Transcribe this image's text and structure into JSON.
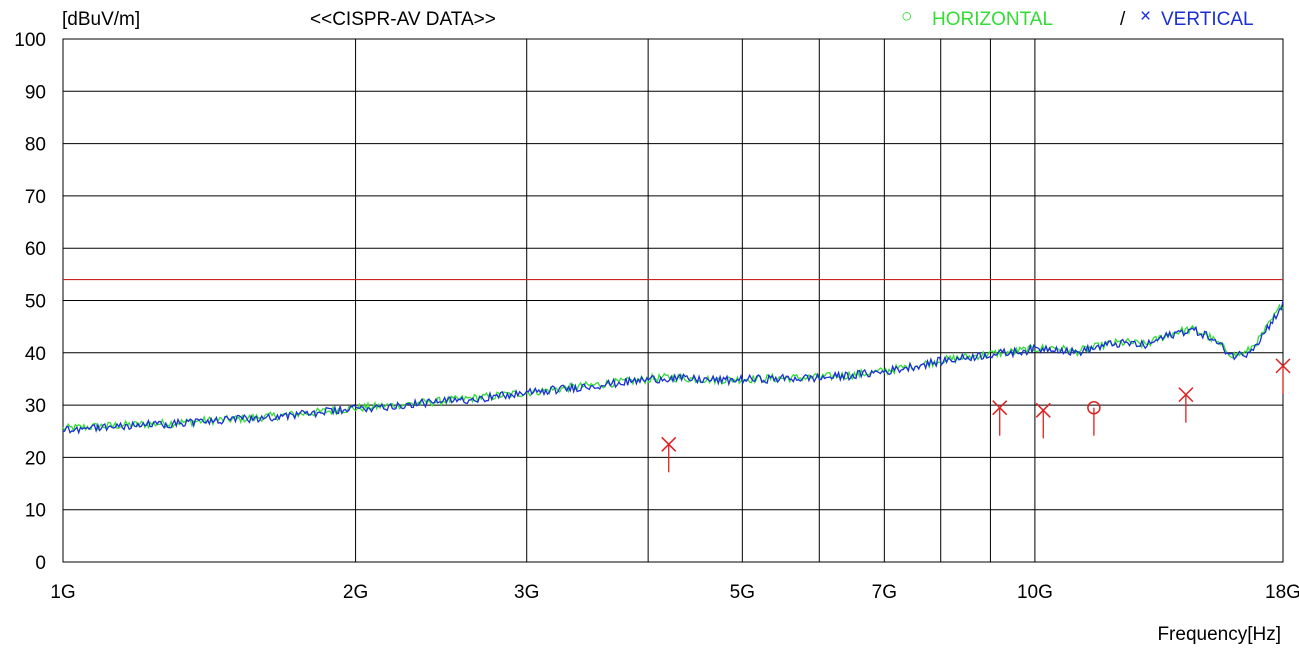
{
  "chart_data": {
    "type": "line",
    "title": "<<CISPR-AV DATA>>",
    "ylabel": "[dBuV/m]",
    "xlabel": "Frequency[Hz]",
    "x_scale": "log",
    "x_unit": "Hz",
    "xlim": [
      1000000000,
      18000000000
    ],
    "ylim": [
      0,
      100
    ],
    "y_ticks": [
      0,
      10,
      20,
      30,
      40,
      50,
      60,
      70,
      80,
      90,
      100
    ],
    "x_ticks": [
      {
        "value": 1000000000,
        "label": "1G"
      },
      {
        "value": 2000000000,
        "label": "2G"
      },
      {
        "value": 3000000000,
        "label": "3G"
      },
      {
        "value": 5000000000,
        "label": "5G"
      },
      {
        "value": 7000000000,
        "label": "7G"
      },
      {
        "value": 10000000000,
        "label": "10G"
      },
      {
        "value": 18000000000,
        "label": "18G"
      }
    ],
    "x_gridlines": [
      1000000000,
      2000000000,
      3000000000,
      4000000000,
      5000000000,
      6000000000,
      7000000000,
      8000000000,
      9000000000,
      10000000000,
      18000000000
    ],
    "grid": true,
    "legend": {
      "position": "top-right",
      "separator": "/",
      "entries": [
        {
          "marker": "○",
          "name": "HORIZONTAL",
          "color": "#33dd33"
        },
        {
          "marker": "×",
          "name": "VERTICAL",
          "color": "#1a2fd6"
        }
      ]
    },
    "limit_line": {
      "value": 54,
      "color": "#cc2222"
    },
    "series": [
      {
        "name": "HORIZONTAL",
        "color": "#33dd33",
        "x": [
          1000000000,
          1100000000,
          1200000000,
          1300000000,
          1400000000,
          1500000000,
          1600000000,
          1700000000,
          1800000000,
          1900000000,
          2000000000,
          2200000000,
          2400000000,
          2600000000,
          2800000000,
          3000000000,
          3200000000,
          3500000000,
          3800000000,
          4000000000,
          4200000000,
          4500000000,
          4800000000,
          5000000000,
          5300000000,
          5600000000,
          6000000000,
          6500000000,
          7000000000,
          7500000000,
          8000000000,
          8500000000,
          9000000000,
          9500000000,
          10000000000,
          10500000000,
          11000000000,
          11500000000,
          12000000000,
          12500000000,
          13000000000,
          13500000000,
          14000000000,
          14500000000,
          15000000000,
          15500000000,
          16000000000,
          16500000000,
          17000000000,
          17500000000,
          18000000000
        ],
        "values": [
          25.5,
          26.0,
          26.3,
          26.6,
          27.0,
          27.3,
          27.7,
          28.1,
          28.5,
          29.0,
          29.4,
          30.0,
          30.6,
          31.2,
          31.8,
          32.4,
          33.0,
          33.8,
          34.5,
          35.0,
          35.3,
          35.0,
          34.8,
          35.0,
          35.1,
          35.2,
          35.3,
          35.8,
          36.5,
          37.5,
          38.5,
          39.2,
          39.8,
          40.2,
          40.8,
          41.0,
          40.2,
          41.0,
          41.8,
          42.0,
          41.5,
          43.0,
          44.0,
          44.5,
          43.5,
          41.5,
          39.5,
          40.0,
          42.5,
          46.0,
          49.5
        ]
      },
      {
        "name": "VERTICAL",
        "color": "#1a2fd6",
        "x": [
          1000000000,
          1100000000,
          1200000000,
          1300000000,
          1400000000,
          1500000000,
          1600000000,
          1700000000,
          1800000000,
          1900000000,
          2000000000,
          2200000000,
          2400000000,
          2600000000,
          2800000000,
          3000000000,
          3200000000,
          3500000000,
          3800000000,
          4000000000,
          4200000000,
          4500000000,
          4800000000,
          5000000000,
          5300000000,
          5600000000,
          6000000000,
          6500000000,
          7000000000,
          7500000000,
          8000000000,
          8500000000,
          9000000000,
          9500000000,
          10000000000,
          10500000000,
          11000000000,
          11500000000,
          12000000000,
          12500000000,
          13000000000,
          13500000000,
          14000000000,
          14500000000,
          15000000000,
          15500000000,
          16000000000,
          16500000000,
          17000000000,
          17500000000,
          18000000000
        ],
        "values": [
          25.3,
          25.8,
          26.2,
          26.5,
          26.9,
          27.2,
          27.6,
          28.0,
          28.4,
          28.9,
          29.3,
          29.9,
          30.5,
          31.1,
          31.7,
          32.3,
          32.9,
          33.7,
          34.4,
          34.9,
          35.2,
          34.9,
          34.7,
          34.9,
          35.0,
          35.1,
          35.2,
          35.7,
          36.4,
          37.4,
          38.4,
          39.1,
          39.7,
          40.1,
          40.7,
          40.9,
          40.0,
          40.9,
          41.7,
          41.8,
          41.4,
          42.8,
          43.8,
          44.4,
          43.4,
          41.4,
          39.4,
          39.9,
          42.3,
          45.8,
          49.3
        ]
      }
    ],
    "markers": {
      "color": "#e02020",
      "points": [
        {
          "x": 4200000000,
          "y": 22.5,
          "shape": "x"
        },
        {
          "x": 9200000000,
          "y": 29.5,
          "shape": "x"
        },
        {
          "x": 10200000000,
          "y": 29.0,
          "shape": "x"
        },
        {
          "x": 11500000000,
          "y": 29.5,
          "shape": "o"
        },
        {
          "x": 14300000000,
          "y": 32.0,
          "shape": "x"
        },
        {
          "x": 18000000000,
          "y": 37.5,
          "shape": "x"
        }
      ]
    }
  }
}
